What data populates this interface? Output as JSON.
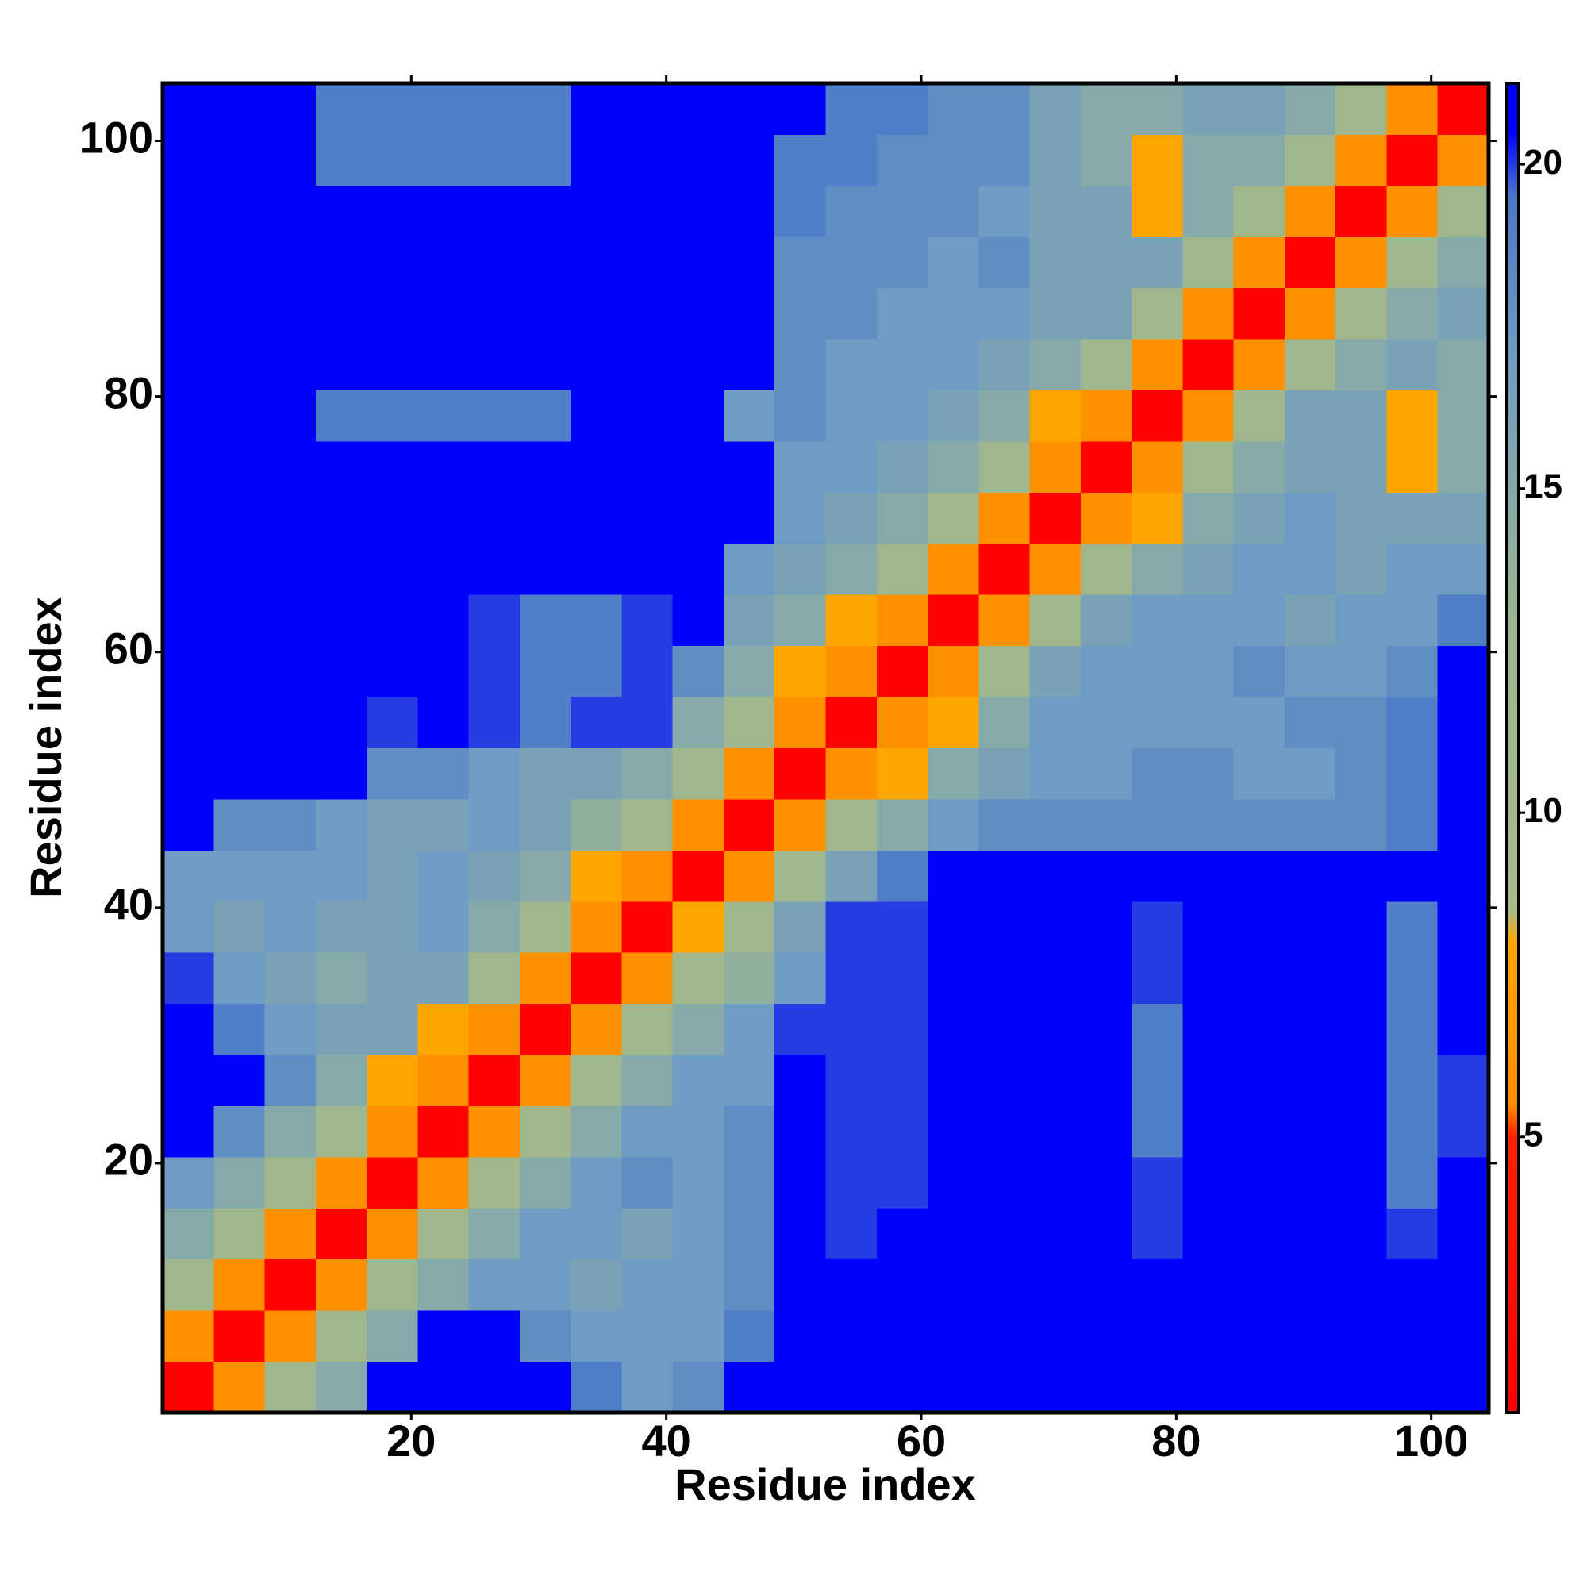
{
  "chart_data": {
    "type": "heatmap",
    "xlabel": "Residue index",
    "ylabel": "Residue index",
    "x": [
      2.5,
      6.5,
      10.5,
      14.5,
      18.5,
      22.5,
      26.5,
      30.5,
      34.5,
      38.5,
      42.5,
      46.5,
      50.5,
      54.5,
      58.5,
      62.5,
      66.5,
      70.5,
      74.5,
      78.5,
      82.5,
      86.5,
      90.5,
      94.5,
      98.5,
      102.5
    ],
    "y": [
      2.5,
      6.5,
      10.5,
      14.5,
      18.5,
      22.5,
      26.5,
      30.5,
      34.5,
      38.5,
      42.5,
      46.5,
      50.5,
      54.5,
      58.5,
      62.5,
      66.5,
      70.5,
      74.5,
      78.5,
      82.5,
      86.5,
      90.5,
      94.5,
      98.5,
      102.5
    ],
    "z": [
      [
        1,
        6,
        11,
        15,
        21,
        21,
        21,
        21,
        19,
        17,
        18,
        21,
        21,
        21,
        21,
        21,
        21,
        21,
        21,
        21,
        21,
        21,
        21,
        21,
        21,
        21
      ],
      [
        6,
        1,
        6,
        11,
        15,
        21,
        21,
        18,
        17,
        17,
        17,
        19,
        21,
        21,
        21,
        21,
        21,
        21,
        21,
        21,
        21,
        21,
        21,
        21,
        21,
        21
      ],
      [
        11,
        6,
        1,
        6,
        11,
        15,
        17,
        17,
        16,
        17,
        17,
        18,
        21,
        21,
        21,
        21,
        21,
        21,
        21,
        21,
        21,
        21,
        21,
        21,
        21,
        21
      ],
      [
        15,
        11,
        6,
        1,
        6,
        11,
        15,
        17,
        17,
        16,
        17,
        18,
        21,
        20,
        21,
        21,
        21,
        21,
        21,
        20,
        21,
        21,
        21,
        21,
        20,
        21
      ],
      [
        17,
        15,
        11,
        6,
        1,
        6,
        11,
        15,
        17,
        18,
        17,
        18,
        21,
        20,
        20,
        21,
        21,
        21,
        21,
        20,
        21,
        21,
        21,
        21,
        19,
        21
      ],
      [
        21,
        18,
        15,
        11,
        6,
        1,
        6,
        11,
        15,
        17,
        17,
        18,
        21,
        20,
        20,
        21,
        21,
        21,
        21,
        19,
        21,
        21,
        21,
        21,
        19,
        20
      ],
      [
        21,
        21,
        18,
        15,
        8,
        6,
        1,
        6,
        11,
        15,
        17,
        17,
        21,
        20,
        20,
        21,
        21,
        21,
        21,
        19,
        21,
        21,
        21,
        21,
        19,
        20
      ],
      [
        21,
        19,
        17,
        16,
        16,
        8,
        6,
        1,
        6,
        11,
        15,
        17,
        20,
        20,
        20,
        21,
        21,
        21,
        21,
        19,
        21,
        21,
        21,
        21,
        19,
        21
      ],
      [
        20,
        17,
        16,
        15,
        16,
        16,
        11,
        6,
        1,
        6,
        11,
        14,
        17,
        20,
        20,
        21,
        21,
        21,
        21,
        20,
        21,
        21,
        21,
        21,
        19,
        21
      ],
      [
        17,
        16,
        17,
        16,
        16,
        17,
        15,
        11,
        6,
        1,
        8,
        11,
        16,
        20,
        20,
        21,
        21,
        21,
        21,
        20,
        21,
        21,
        21,
        21,
        19,
        21
      ],
      [
        17,
        17,
        17,
        17,
        16,
        17,
        16,
        15,
        8,
        6,
        1,
        6,
        11,
        16,
        19,
        21,
        21,
        21,
        21,
        21,
        21,
        21,
        21,
        21,
        21,
        21
      ],
      [
        21,
        18,
        18,
        17,
        16,
        16,
        17,
        16,
        14,
        11,
        6,
        1,
        6,
        11,
        15,
        17,
        18,
        18,
        18,
        18,
        18,
        18,
        18,
        18,
        19,
        21
      ],
      [
        21,
        21,
        21,
        21,
        18,
        18,
        17,
        16,
        16,
        15,
        11,
        6,
        1,
        6,
        8,
        15,
        16,
        17,
        17,
        18,
        18,
        17,
        17,
        18,
        19,
        21
      ],
      [
        21,
        21,
        21,
        21,
        20,
        21,
        20,
        19,
        20,
        20,
        15,
        11,
        6,
        1,
        6,
        8,
        15,
        17,
        17,
        17,
        17,
        17,
        18,
        18,
        19,
        21
      ],
      [
        21,
        21,
        21,
        21,
        21,
        21,
        20,
        19,
        19,
        20,
        18,
        15,
        8,
        6,
        1,
        6,
        11,
        16,
        17,
        17,
        17,
        18,
        17,
        17,
        18,
        21
      ],
      [
        21,
        21,
        21,
        21,
        21,
        21,
        20,
        19,
        19,
        20,
        21,
        16,
        15,
        8,
        6,
        1,
        6,
        11,
        16,
        17,
        17,
        17,
        16,
        17,
        17,
        19
      ],
      [
        21,
        21,
        21,
        21,
        21,
        21,
        21,
        21,
        21,
        21,
        21,
        17,
        16,
        15,
        11,
        6,
        1,
        6,
        11,
        15,
        16,
        17,
        17,
        16,
        17,
        17
      ],
      [
        21,
        21,
        21,
        21,
        21,
        21,
        21,
        21,
        21,
        21,
        21,
        21,
        17,
        16,
        15,
        11,
        6,
        1,
        6,
        8,
        15,
        16,
        17,
        16,
        16,
        16
      ],
      [
        21,
        21,
        21,
        21,
        21,
        21,
        21,
        21,
        21,
        21,
        21,
        21,
        17,
        17,
        16,
        15,
        11,
        6,
        1,
        6,
        11,
        15,
        16,
        16,
        8,
        15
      ],
      [
        21,
        21,
        21,
        19,
        19,
        19,
        19,
        19,
        21,
        21,
        21,
        17,
        18,
        17,
        17,
        16,
        15,
        8,
        6,
        1,
        6,
        11,
        16,
        16,
        8,
        15
      ],
      [
        21,
        21,
        21,
        21,
        21,
        21,
        21,
        21,
        21,
        21,
        21,
        21,
        18,
        17,
        17,
        17,
        16,
        15,
        11,
        6,
        1,
        6,
        11,
        15,
        16,
        15
      ],
      [
        21,
        21,
        21,
        21,
        21,
        21,
        21,
        21,
        21,
        21,
        21,
        21,
        18,
        18,
        17,
        17,
        17,
        16,
        16,
        11,
        6,
        1,
        6,
        11,
        15,
        16
      ],
      [
        21,
        21,
        21,
        21,
        21,
        21,
        21,
        21,
        21,
        21,
        21,
        21,
        18,
        18,
        18,
        17,
        18,
        16,
        16,
        16,
        11,
        6,
        1,
        6,
        11,
        15
      ],
      [
        21,
        21,
        21,
        21,
        21,
        21,
        21,
        21,
        21,
        21,
        21,
        21,
        19,
        18,
        18,
        18,
        17,
        16,
        16,
        8,
        15,
        11,
        6,
        1,
        6,
        11
      ],
      [
        21,
        21,
        21,
        19,
        19,
        19,
        19,
        19,
        21,
        21,
        21,
        21,
        19,
        19,
        18,
        18,
        18,
        16,
        15,
        8,
        15,
        15,
        11,
        6,
        1,
        6
      ],
      [
        21,
        21,
        21,
        19,
        19,
        19,
        19,
        19,
        21,
        21,
        21,
        21,
        21,
        19,
        19,
        18,
        18,
        16,
        15,
        15,
        16,
        16,
        15,
        11,
        6,
        1
      ]
    ],
    "xlim": [
      0.5,
      104.5
    ],
    "ylim": [
      0.5,
      104.5
    ],
    "xticks": [
      20,
      40,
      60,
      80,
      100
    ],
    "yticks": [
      20,
      40,
      60,
      80,
      100
    ],
    "colorbar": {
      "lim": [
        0.75,
        21.25
      ],
      "ticks": [
        5,
        10,
        15,
        20
      ],
      "stops": [
        {
          "value": 0.75,
          "color": "#ff0000"
        },
        {
          "value": 5,
          "color": "#ff2000"
        },
        {
          "value": 5.5,
          "color": "#ff8c00"
        },
        {
          "value": 8,
          "color": "#ffa500"
        },
        {
          "value": 8.5,
          "color": "#a6ba8a"
        },
        {
          "value": 13,
          "color": "#9cb590"
        },
        {
          "value": 17,
          "color": "#6f9cc2"
        },
        {
          "value": 19.5,
          "color": "#4a78c8"
        },
        {
          "value": 20.5,
          "color": "#0000ff"
        },
        {
          "value": 21.25,
          "color": "#0000ff"
        }
      ]
    }
  }
}
